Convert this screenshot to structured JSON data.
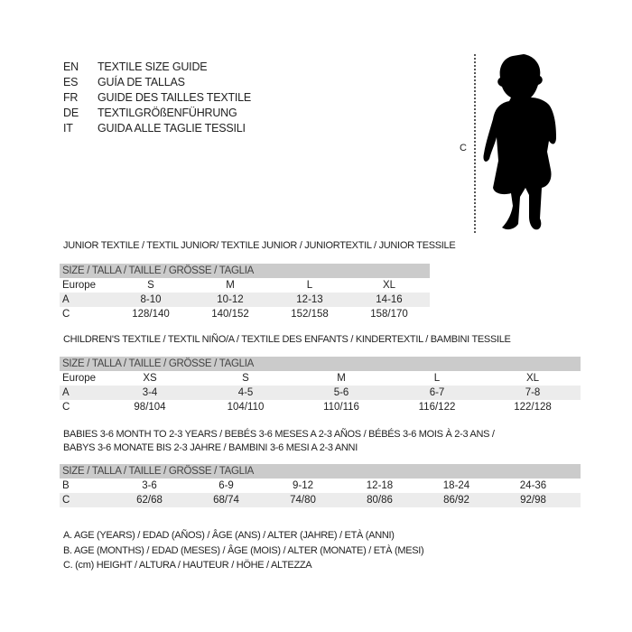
{
  "languages": [
    {
      "code": "EN",
      "text": "TEXTILE SIZE GUIDE"
    },
    {
      "code": "ES",
      "text": "GUÍA DE TALLAS"
    },
    {
      "code": "FR",
      "text": "GUIDE DES TAILLES TEXTILE"
    },
    {
      "code": "DE",
      "text": "TEXTILGRÖßENFÜHRUNG"
    },
    {
      "code": "IT",
      "text": "GUIDA ALLE TAGLIE TESSILI"
    }
  ],
  "figure": {
    "measure_label": "C",
    "icon": "child-silhouette"
  },
  "tables": [
    {
      "title": "JUNIOR TEXTILE / TEXTIL JUNIOR/ TEXTILE JUNIOR / JUNIORTEXTIL / JUNIOR TESSILE",
      "header": "SIZE / TALLA / TAILLE / GRÖSSE / TAGLIA",
      "rows": [
        {
          "label": "Europe",
          "cells": [
            "S",
            "M",
            "L",
            "XL"
          ]
        },
        {
          "label": "A",
          "cells": [
            "8-10",
            "10-12",
            "12-13",
            "14-16"
          ]
        },
        {
          "label": "C",
          "cells": [
            "128/140",
            "140/152",
            "152/158",
            "158/170"
          ]
        }
      ]
    },
    {
      "title": "CHILDREN'S TEXTILE / TEXTIL NIÑO/A / TEXTILE DES ENFANTS / KINDERTEXTIL / BAMBINI TESSILE",
      "header": "SIZE / TALLA / TAILLE / GRÖSSE / TAGLIA",
      "rows": [
        {
          "label": "Europe",
          "cells": [
            "XS",
            "S",
            "M",
            "L",
            "XL"
          ]
        },
        {
          "label": "A",
          "cells": [
            "3-4",
            "4-5",
            "5-6",
            "6-7",
            "7-8"
          ]
        },
        {
          "label": "C",
          "cells": [
            "98/104",
            "104/110",
            "110/116",
            "116/122",
            "122/128"
          ]
        }
      ]
    },
    {
      "title": "BABIES 3-6 MONTH TO 2-3 YEARS / BEBÉS 3-6 MESES A 2-3 AÑOS / BÉBÉS 3-6 MOIS À 2-3 ANS /",
      "title2": "BABYS 3-6 MONATE BIS 2-3 JAHRE / BAMBINI 3-6 MESI A 2-3 ANNI",
      "header": "SIZE / TALLA / TAILLE / GRÖSSE / TAGLIA",
      "rows": [
        {
          "label": "B",
          "cells": [
            "3-6",
            "6-9",
            "9-12",
            "12-18",
            "18-24",
            "24-36"
          ]
        },
        {
          "label": "C",
          "cells": [
            "62/68",
            "68/74",
            "74/80",
            "80/86",
            "86/92",
            "92/98"
          ]
        }
      ]
    }
  ],
  "legend": [
    "A. AGE (YEARS) / EDAD (AÑOS) / ÂGE (ANS) / ALTER (JAHRE) / ETÀ (ANNI)",
    "B. AGE (MONTHS) / EDAD (MESES) / ÂGE (MOIS) / ALTER (MONATE) / ETÀ (MESI)",
    "C. (cm) HEIGHT / ALTURA / HAUTEUR / HÖHE / ALTEZZA"
  ]
}
